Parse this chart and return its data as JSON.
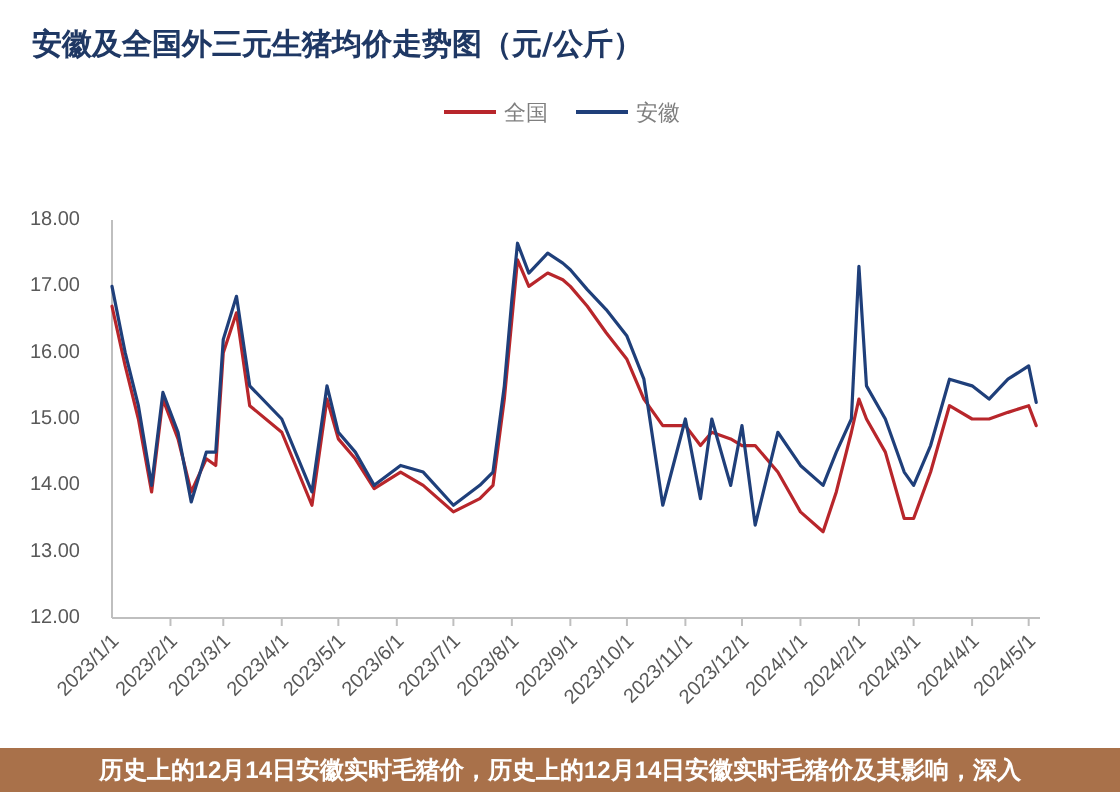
{
  "chart_data": {
    "type": "line",
    "title": "安徽及全国外三元生猪均价走势图（元/公斤）",
    "legend": "top",
    "x": [
      "2023-01-01",
      "2023-01-08",
      "2023-01-15",
      "2023-01-22",
      "2023-01-28",
      "2023-02-05",
      "2023-02-12",
      "2023-02-20",
      "2023-02-25",
      "2023-03-01",
      "2023-03-08",
      "2023-03-15",
      "2023-04-01",
      "2023-04-17",
      "2023-04-25",
      "2023-05-01",
      "2023-05-10",
      "2023-05-20",
      "2023-06-03",
      "2023-06-15",
      "2023-07-01",
      "2023-07-15",
      "2023-07-22",
      "2023-07-28",
      "2023-08-01",
      "2023-08-04",
      "2023-08-10",
      "2023-08-20",
      "2023-08-28",
      "2023-09-01",
      "2023-09-10",
      "2023-09-20",
      "2023-10-01",
      "2023-10-10",
      "2023-10-20",
      "2023-11-01",
      "2023-11-09",
      "2023-11-15",
      "2023-11-25",
      "2023-12-01",
      "2023-12-08",
      "2023-12-20",
      "2024-01-01",
      "2024-01-13",
      "2024-01-20",
      "2024-01-28",
      "2024-02-01",
      "2024-02-05",
      "2024-02-15",
      "2024-02-25",
      "2024-03-01",
      "2024-03-10",
      "2024-03-20",
      "2024-04-01",
      "2024-04-10",
      "2024-04-20",
      "2024-05-01",
      "2024-05-05"
    ],
    "series": [
      {
        "name": "全国",
        "color": "#b8262b",
        "values": [
          16.7,
          15.8,
          15.0,
          13.9,
          15.3,
          14.7,
          13.9,
          14.4,
          14.3,
          16.0,
          16.6,
          15.2,
          14.8,
          13.7,
          15.3,
          14.7,
          14.4,
          13.95,
          14.2,
          14.0,
          13.6,
          13.8,
          14.0,
          15.3,
          16.5,
          17.4,
          17.0,
          17.2,
          17.1,
          17.0,
          16.7,
          16.3,
          15.9,
          15.3,
          14.9,
          14.9,
          14.6,
          14.8,
          14.7,
          14.6,
          14.6,
          14.2,
          13.6,
          13.3,
          13.9,
          14.8,
          15.3,
          15.0,
          14.5,
          13.5,
          13.5,
          14.2,
          15.2,
          15.0,
          15.0,
          15.1,
          15.2,
          14.9
        ]
      },
      {
        "name": "安徽",
        "color": "#1f3f7a",
        "values": [
          17.0,
          16.0,
          15.2,
          14.0,
          15.4,
          14.8,
          13.75,
          14.5,
          14.5,
          16.2,
          16.85,
          15.5,
          15.0,
          13.9,
          15.5,
          14.8,
          14.5,
          14.0,
          14.3,
          14.2,
          13.7,
          14.0,
          14.2,
          15.5,
          16.8,
          17.65,
          17.2,
          17.5,
          17.35,
          17.25,
          16.95,
          16.65,
          16.25,
          15.6,
          13.7,
          15.0,
          13.8,
          15.0,
          14.0,
          14.9,
          13.4,
          14.8,
          14.3,
          14.0,
          14.5,
          15.0,
          17.3,
          15.5,
          15.0,
          14.2,
          14.0,
          14.6,
          15.6,
          15.5,
          15.3,
          15.6,
          15.8,
          15.25
        ]
      }
    ],
    "xlim": [
      "2023-01-01",
      "2024-05-07"
    ],
    "xticks": [
      {
        "value": "2023-01-01",
        "label": "2023/1/1"
      },
      {
        "value": "2023-02-01",
        "label": "2023/2/1"
      },
      {
        "value": "2023-03-01",
        "label": "2023/3/1"
      },
      {
        "value": "2023-04-01",
        "label": "2023/4/1"
      },
      {
        "value": "2023-05-01",
        "label": "2023/5/1"
      },
      {
        "value": "2023-06-01",
        "label": "2023/6/1"
      },
      {
        "value": "2023-07-01",
        "label": "2023/7/1"
      },
      {
        "value": "2023-08-01",
        "label": "2023/8/1"
      },
      {
        "value": "2023-09-01",
        "label": "2023/9/1"
      },
      {
        "value": "2023-10-01",
        "label": "2023/10/1"
      },
      {
        "value": "2023-11-01",
        "label": "2023/11/1"
      },
      {
        "value": "2023-12-01",
        "label": "2023/12/1"
      },
      {
        "value": "2024-01-01",
        "label": "2024/1/1"
      },
      {
        "value": "2024-02-01",
        "label": "2024/2/1"
      },
      {
        "value": "2024-03-01",
        "label": "2024/3/1"
      },
      {
        "value": "2024-04-01",
        "label": "2024/4/1"
      },
      {
        "value": "2024-05-01",
        "label": "2024/5/1"
      }
    ],
    "ylim": [
      12,
      18
    ],
    "yticks": [
      {
        "value": 12,
        "label": "12.00"
      },
      {
        "value": 13,
        "label": "13.00"
      },
      {
        "value": 14,
        "label": "14.00"
      },
      {
        "value": 15,
        "label": "15.00"
      },
      {
        "value": 16,
        "label": "16.00"
      },
      {
        "value": 17,
        "label": "17.00"
      },
      {
        "value": 18,
        "label": "18.00"
      }
    ],
    "annotations": [
      "历史上的12月14日安徽实时毛猪价，历史上的12月14日安徽实时毛猪价及其影响，深入"
    ]
  }
}
